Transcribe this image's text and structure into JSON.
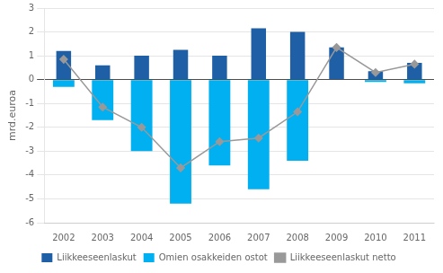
{
  "chart_data": {
    "type": "bar",
    "ylabel": "mrd.euroa",
    "categories": [
      "2002",
      "2003",
      "2004",
      "2005",
      "2006",
      "2007",
      "2008",
      "2009",
      "2010",
      "2011"
    ],
    "series": [
      {
        "name": "Liikkeeseenlaskut",
        "type": "bar",
        "color": "#1F5FA6",
        "values": [
          1.2,
          0.6,
          1.0,
          1.25,
          1.0,
          2.15,
          2.0,
          1.35,
          0.35,
          0.7
        ]
      },
      {
        "name": "Omien osakkeiden ostot",
        "type": "bar",
        "color": "#00B0F0",
        "values": [
          -0.3,
          -1.7,
          -3.0,
          -5.2,
          -3.6,
          -4.6,
          -3.4,
          0.0,
          -0.1,
          -0.15
        ]
      },
      {
        "name": "Liikkeeseenlaskut netto",
        "type": "line",
        "color": "#999999",
        "marker": "diamond",
        "values": [
          0.85,
          -1.15,
          -2.0,
          -3.7,
          -2.6,
          -2.45,
          -1.35,
          1.35,
          0.3,
          0.65
        ]
      }
    ],
    "ylim": [
      -6,
      3
    ],
    "yticks": [
      -6,
      -5,
      -4,
      -3,
      -2,
      -1,
      0,
      1,
      2,
      3
    ],
    "grid": true,
    "legend": "bottom"
  }
}
